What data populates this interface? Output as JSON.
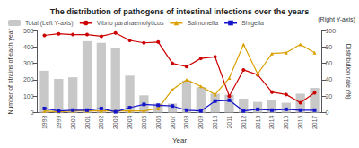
{
  "chart_data": {
    "type": "bar",
    "title": "The distribution of pathogens of intestinal infections over the years",
    "xlabel": "Year",
    "ylabel": "Number of strains of each year",
    "y2label": "Distribution rate (%)",
    "annotations": [
      "(Right Y-axis)"
    ],
    "categories": [
      "1998",
      "1999",
      "2000",
      "2001",
      "2002",
      "2003",
      "2004",
      "2005",
      "2006",
      "2007",
      "2008",
      "2009",
      "2010",
      "2011",
      "2012",
      "2013",
      "2014",
      "2015",
      "2016",
      "2017"
    ],
    "series": [
      {
        "name": "Total (Left Y-axis)",
        "type": "bar",
        "color": "#c8c8c8",
        "values": [
          255,
          205,
          215,
          435,
          425,
          395,
          225,
          105,
          55,
          55,
          195,
          155,
          115,
          110,
          85,
          65,
          75,
          60,
          115,
          150
        ]
      },
      {
        "name": "Vibrio parahaemolyticus",
        "type": "line",
        "axis": "y2",
        "color": "#CC0000",
        "marker": "circle",
        "values": [
          94,
          96,
          95,
          95,
          93,
          97,
          88,
          85,
          86,
          60,
          56,
          66,
          68,
          20,
          52,
          46,
          25,
          22,
          12,
          24
        ]
      },
      {
        "name": "Salmonella",
        "type": "line",
        "axis": "y2",
        "color": "#DAA000",
        "marker": "triangle",
        "values": [
          2,
          1,
          2,
          2,
          2,
          2,
          2,
          2,
          5,
          28,
          40,
          32,
          22,
          42,
          83,
          47,
          72,
          73,
          83,
          73
        ]
      },
      {
        "name": "Shigella",
        "type": "line",
        "axis": "y2",
        "color": "#1515CC",
        "marker": "square",
        "values": [
          5,
          2,
          3,
          3,
          5,
          1,
          6,
          10,
          9,
          8,
          3,
          2,
          14,
          15,
          2,
          4,
          3,
          4,
          3,
          3
        ]
      }
    ],
    "ylim": [
      0,
      500
    ],
    "yticks": [
      0,
      100,
      200,
      300,
      400,
      500
    ],
    "y2lim": [
      0,
      100
    ],
    "y2ticks": [
      0,
      20,
      40,
      60,
      80,
      100
    ],
    "grid": false,
    "legend": "top"
  }
}
